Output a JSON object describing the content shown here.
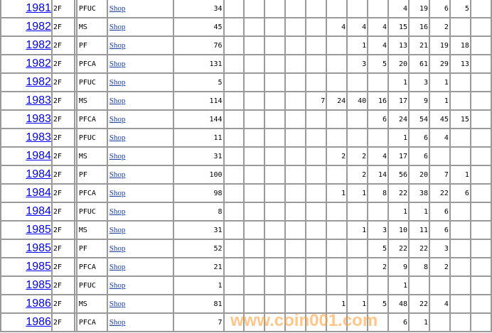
{
  "link_label": "Shop",
  "watermark": "www.coin001.com",
  "grade_column_count": 13,
  "rows": [
    {
      "year": "1981",
      "denom": "2F",
      "type": "PFUC",
      "count": "34",
      "grades": {
        "9": "4",
        "10": "19",
        "11": "6",
        "12": "5"
      }
    },
    {
      "year": "1982",
      "denom": "2F",
      "type": "MS",
      "count": "45",
      "grades": {
        "6": "4",
        "7": "4",
        "8": "4",
        "9": "15",
        "10": "16",
        "11": "2"
      }
    },
    {
      "year": "1982",
      "denom": "2F",
      "type": "PF",
      "count": "76",
      "grades": {
        "7": "1",
        "8": "4",
        "9": "13",
        "10": "21",
        "11": "19",
        "12": "18"
      }
    },
    {
      "year": "1982",
      "denom": "2F",
      "type": "PFCA",
      "count": "131",
      "grades": {
        "7": "3",
        "8": "5",
        "9": "20",
        "10": "61",
        "11": "29",
        "12": "13"
      }
    },
    {
      "year": "1982",
      "denom": "2F",
      "type": "PFUC",
      "count": "5",
      "grades": {
        "9": "1",
        "10": "3",
        "11": "1"
      }
    },
    {
      "year": "1983",
      "denom": "2F",
      "type": "MS",
      "count": "114",
      "grades": {
        "5": "7",
        "6": "24",
        "7": "40",
        "8": "16",
        "9": "17",
        "10": "9",
        "11": "1"
      }
    },
    {
      "year": "1983",
      "denom": "2F",
      "type": "PFCA",
      "count": "144",
      "grades": {
        "8": "6",
        "9": "24",
        "10": "54",
        "11": "45",
        "12": "15"
      }
    },
    {
      "year": "1983",
      "denom": "2F",
      "type": "PFUC",
      "count": "11",
      "grades": {
        "9": "1",
        "10": "6",
        "11": "4"
      }
    },
    {
      "year": "1984",
      "denom": "2F",
      "type": "MS",
      "count": "31",
      "grades": {
        "6": "2",
        "7": "2",
        "8": "4",
        "9": "17",
        "10": "6"
      }
    },
    {
      "year": "1984",
      "denom": "2F",
      "type": "PF",
      "count": "100",
      "grades": {
        "7": "2",
        "8": "14",
        "9": "56",
        "10": "20",
        "11": "7",
        "12": "1"
      }
    },
    {
      "year": "1984",
      "denom": "2F",
      "type": "PFCA",
      "count": "98",
      "grades": {
        "6": "1",
        "7": "1",
        "8": "8",
        "9": "22",
        "10": "38",
        "11": "22",
        "12": "6"
      }
    },
    {
      "year": "1984",
      "denom": "2F",
      "type": "PFUC",
      "count": "8",
      "grades": {
        "9": "1",
        "10": "1",
        "11": "6"
      }
    },
    {
      "year": "1985",
      "denom": "2F",
      "type": "MS",
      "count": "31",
      "grades": {
        "7": "1",
        "8": "3",
        "9": "10",
        "10": "11",
        "11": "6"
      }
    },
    {
      "year": "1985",
      "denom": "2F",
      "type": "PF",
      "count": "52",
      "grades": {
        "8": "5",
        "9": "22",
        "10": "22",
        "11": "3"
      }
    },
    {
      "year": "1985",
      "denom": "2F",
      "type": "PFCA",
      "count": "21",
      "grades": {
        "8": "2",
        "9": "9",
        "10": "8",
        "11": "2"
      }
    },
    {
      "year": "1985",
      "denom": "2F",
      "type": "PFUC",
      "count": "1",
      "grades": {
        "9": "1"
      }
    },
    {
      "year": "1986",
      "denom": "2F",
      "type": "MS",
      "count": "81",
      "grades": {
        "6": "1",
        "7": "1",
        "8": "5",
        "9": "48",
        "10": "22",
        "11": "4"
      }
    },
    {
      "year": "1986",
      "denom": "2F",
      "type": "PFCA",
      "count": "7",
      "grades": {
        "9": "6",
        "10": "1"
      }
    }
  ]
}
